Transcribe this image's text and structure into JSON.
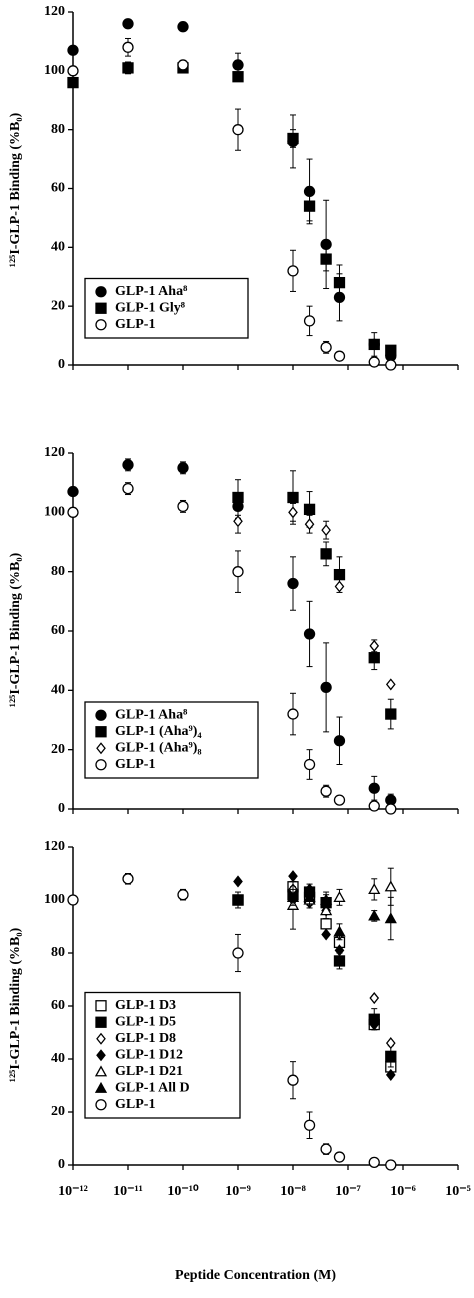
{
  "chart_data": [
    {
      "type": "scatter",
      "ylabel": "¹²⁵I-GLP-1 Binding (%B₀)",
      "xscale": "log",
      "xlim": [
        1e-12,
        1e-05
      ],
      "ylim": [
        0,
        120
      ],
      "xticks": [
        1e-12,
        1e-11,
        1e-10,
        1e-09,
        1e-08,
        1e-07,
        1e-06,
        1e-05
      ],
      "yticks": [
        0,
        20,
        40,
        60,
        80,
        100,
        120
      ],
      "legend": "lower left",
      "series": [
        {
          "name": "GLP-1 Aha⁸",
          "color": "#000000",
          "marker": "filled-circle",
          "x": [
            1e-12,
            1e-11,
            1e-10,
            1e-09,
            1e-08,
            2e-08,
            4e-08,
            7e-08,
            3e-07,
            6e-07
          ],
          "values": [
            107,
            116,
            115,
            102,
            76,
            59,
            41,
            23,
            7,
            3
          ],
          "errors": [
            null,
            null,
            null,
            4,
            9,
            11,
            15,
            8,
            4,
            null
          ]
        },
        {
          "name": "GLP-1 Gly⁸",
          "color": "#000000",
          "marker": "filled-square",
          "x": [
            1e-12,
            1e-11,
            1e-10,
            1e-09,
            1e-08,
            2e-08,
            4e-08,
            7e-08,
            3e-07,
            6e-07
          ],
          "values": [
            96,
            101,
            101,
            98,
            77,
            54,
            36,
            28,
            7,
            5
          ],
          "errors": [
            null,
            2,
            null,
            null,
            3,
            5,
            4,
            6,
            null,
            null
          ]
        },
        {
          "name": "GLP-1",
          "color": "#000000",
          "marker": "open-circle",
          "x": [
            1e-12,
            1e-11,
            1e-10,
            1e-09,
            1e-08,
            2e-08,
            4e-08,
            7e-08,
            3e-07,
            6e-07
          ],
          "values": [
            100,
            108,
            102,
            80,
            32,
            15,
            6,
            3,
            1,
            0
          ],
          "errors": [
            null,
            3,
            null,
            7,
            7,
            5,
            2,
            1,
            null,
            null
          ]
        }
      ]
    },
    {
      "type": "scatter",
      "ylabel": "¹²⁵I-GLP-1 Binding (%B₀)",
      "xscale": "log",
      "xlim": [
        1e-12,
        1e-05
      ],
      "ylim": [
        0,
        120
      ],
      "xticks": [
        1e-12,
        1e-11,
        1e-10,
        1e-09,
        1e-08,
        1e-07,
        1e-06,
        1e-05
      ],
      "yticks": [
        0,
        20,
        40,
        60,
        80,
        100,
        120
      ],
      "legend": "lower left",
      "series": [
        {
          "name": "GLP-1 Aha⁸",
          "color": "#000000",
          "marker": "filled-circle",
          "x": [
            1e-12,
            1e-11,
            1e-10,
            1e-09,
            1e-08,
            2e-08,
            4e-08,
            7e-08,
            3e-07,
            6e-07
          ],
          "values": [
            107,
            116,
            115,
            102,
            76,
            59,
            41,
            23,
            7,
            3
          ],
          "errors": [
            null,
            2,
            2,
            4,
            9,
            11,
            15,
            8,
            4,
            2
          ]
        },
        {
          "name": "GLP-1 (Aha⁹)₄",
          "color": "#000000",
          "marker": "filled-square",
          "x": [
            1e-09,
            1e-08,
            2e-08,
            4e-08,
            7e-08,
            3e-07,
            6e-07
          ],
          "values": [
            105,
            105,
            101,
            86,
            79,
            51,
            32
          ],
          "errors": [
            6,
            9,
            6,
            4,
            6,
            4,
            5
          ]
        },
        {
          "name": "GLP-1 (Aha⁹)₈",
          "color": "#000000",
          "marker": "open-diamond",
          "x": [
            1e-09,
            1e-08,
            2e-08,
            4e-08,
            7e-08,
            3e-07,
            6e-07
          ],
          "values": [
            97,
            100,
            96,
            94,
            75,
            55,
            42
          ],
          "errors": [
            4,
            3,
            3,
            3,
            null,
            2,
            null
          ]
        },
        {
          "name": "GLP-1",
          "color": "#000000",
          "marker": "open-circle",
          "x": [
            1e-12,
            1e-11,
            1e-10,
            1e-09,
            1e-08,
            2e-08,
            4e-08,
            7e-08,
            3e-07,
            6e-07
          ],
          "values": [
            100,
            108,
            102,
            80,
            32,
            15,
            6,
            3,
            1,
            0
          ],
          "errors": [
            null,
            2,
            2,
            7,
            7,
            5,
            2,
            1,
            null,
            null
          ]
        }
      ]
    },
    {
      "type": "scatter",
      "ylabel": "¹²⁵I-GLP-1 Binding (%B₀)",
      "xlabel": "Peptide Concentration (M)",
      "xscale": "log",
      "xlim": [
        1e-12,
        1e-05
      ],
      "ylim": [
        0,
        120
      ],
      "xticks": [
        {
          "value": 1e-12,
          "label": "10⁻¹²"
        },
        {
          "value": 1e-11,
          "label": "10⁻¹¹"
        },
        {
          "value": 1e-10,
          "label": "10⁻¹⁰"
        },
        {
          "value": 1e-09,
          "label": "10⁻⁹"
        },
        {
          "value": 1e-08,
          "label": "10⁻⁸"
        },
        {
          "value": 1e-07,
          "label": "10⁻⁷"
        },
        {
          "value": 1e-06,
          "label": "10⁻⁶"
        },
        {
          "value": 1e-05,
          "label": "10⁻⁵"
        }
      ],
      "yticks": [
        0,
        20,
        40,
        60,
        80,
        100,
        120
      ],
      "legend": "lower left",
      "series": [
        {
          "name": "GLP-1 D3",
          "color": "#000000",
          "marker": "open-square",
          "x": [
            1e-09,
            1e-08,
            2e-08,
            4e-08,
            7e-08,
            3e-07,
            6e-07
          ],
          "values": [
            100,
            105,
            101,
            91,
            84,
            53,
            37
          ]
        },
        {
          "name": "GLP-1 D5",
          "color": "#000000",
          "marker": "filled-square",
          "x": [
            1e-09,
            1e-08,
            2e-08,
            4e-08,
            7e-08,
            3e-07,
            6e-07
          ],
          "values": [
            100,
            102,
            103,
            99,
            77,
            55,
            41
          ],
          "errors": [
            3,
            3,
            3,
            3,
            3,
            4,
            4
          ]
        },
        {
          "name": "GLP-1 D8",
          "color": "#000000",
          "marker": "open-diamond",
          "x": [
            1e-08,
            2e-08,
            4e-08,
            7e-08,
            3e-07,
            6e-07
          ],
          "values": [
            104,
            99,
            96,
            87,
            63,
            46
          ]
        },
        {
          "name": "GLP-1 D12",
          "color": "#000000",
          "marker": "filled-diamond",
          "x": [
            1e-09,
            1e-08,
            2e-08,
            4e-08,
            7e-08,
            3e-07,
            6e-07
          ],
          "values": [
            107,
            109,
            104,
            87,
            81,
            53,
            34
          ]
        },
        {
          "name": "GLP-1 D21",
          "color": "#000000",
          "marker": "open-triangle",
          "x": [
            1e-08,
            2e-08,
            4e-08,
            7e-08,
            3e-07,
            6e-07
          ],
          "values": [
            98,
            100,
            96,
            101,
            104,
            105
          ],
          "errors": [
            9,
            3,
            3,
            3,
            4,
            7
          ]
        },
        {
          "name": "GLP-1 All D",
          "color": "#000000",
          "marker": "filled-triangle",
          "x": [
            1e-08,
            2e-08,
            4e-08,
            7e-08,
            3e-07,
            6e-07
          ],
          "values": [
            101,
            101,
            100,
            88,
            94,
            93
          ],
          "errors": [
            3,
            3,
            3,
            3,
            2,
            8
          ]
        },
        {
          "name": "GLP-1",
          "color": "#000000",
          "marker": "open-circle",
          "x": [
            1e-12,
            1e-11,
            1e-10,
            1e-09,
            1e-08,
            2e-08,
            4e-08,
            7e-08,
            3e-07,
            6e-07
          ],
          "values": [
            100,
            108,
            102,
            80,
            32,
            15,
            6,
            3,
            1,
            0
          ],
          "errors": [
            null,
            2,
            2,
            7,
            7,
            5,
            2,
            1,
            null,
            null
          ]
        }
      ]
    }
  ]
}
